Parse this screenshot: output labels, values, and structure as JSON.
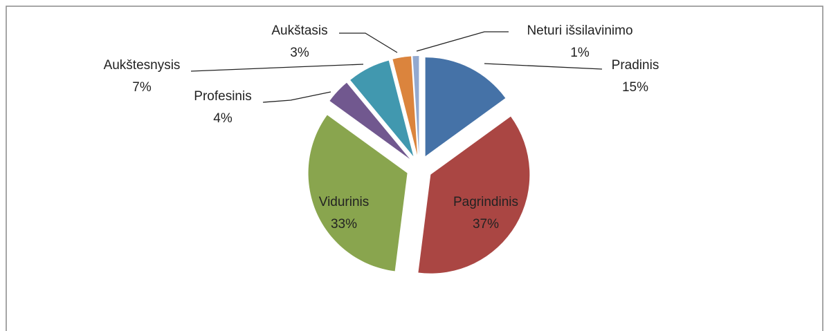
{
  "chart_data": {
    "type": "pie",
    "categories": [
      "Pradinis",
      "Pagrindinis",
      "Vidurinis",
      "Profesinis",
      "Aukštesnysis",
      "Aukštasis",
      "Neturi išsilavinimo"
    ],
    "values": [
      15,
      37,
      33,
      4,
      7,
      3,
      1
    ],
    "value_labels": [
      "15%",
      "37%",
      "33%",
      "4%",
      "7%",
      "3%",
      "1%"
    ],
    "colors": [
      "#4572a7",
      "#aa4643",
      "#89a54e",
      "#71588f",
      "#4198af",
      "#db843d",
      "#93a9cf"
    ]
  }
}
